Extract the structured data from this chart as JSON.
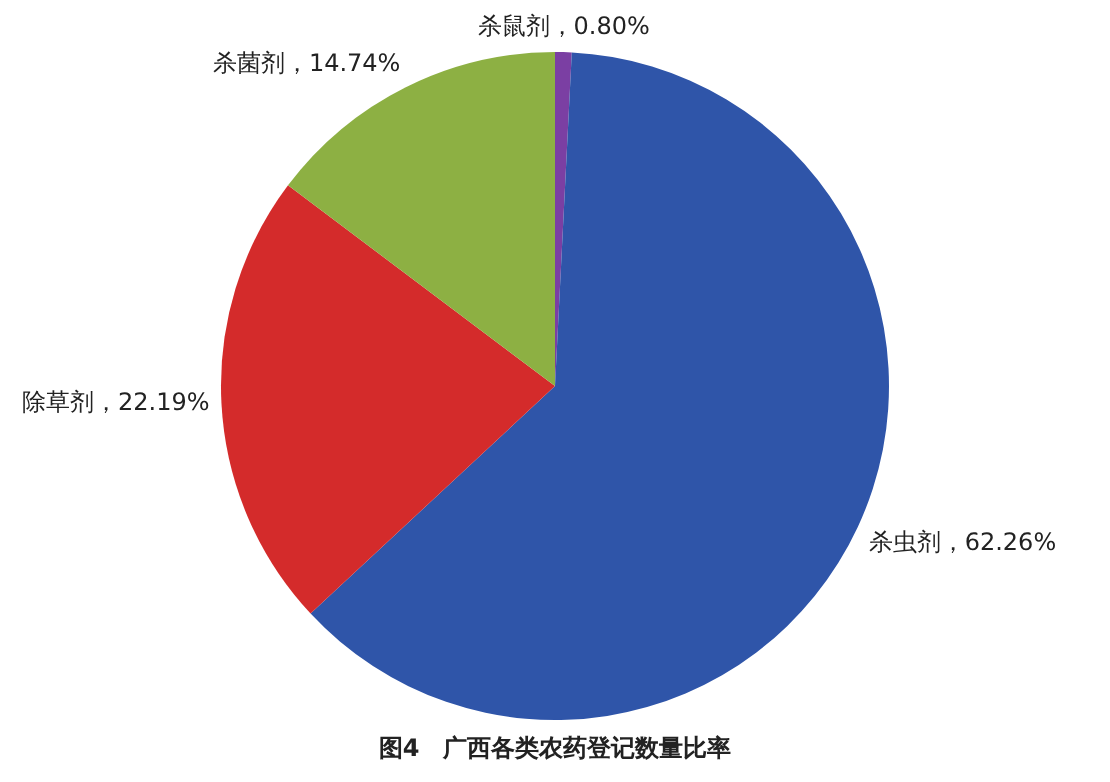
{
  "chart_data": {
    "type": "pie",
    "title": "图4　广西各类农药登记数量比率",
    "categories": [
      "杀鼠剂",
      "杀虫剂",
      "除草剂",
      "杀菌剂"
    ],
    "values": [
      0.8,
      62.26,
      22.19,
      14.74
    ],
    "colors": [
      "#7b3fa3",
      "#2f55a9",
      "#d42b2b",
      "#8db043"
    ],
    "value_labels": [
      "，0.80%",
      "，62.26%",
      "，22.19%",
      "，14.74%"
    ],
    "legend": false
  }
}
